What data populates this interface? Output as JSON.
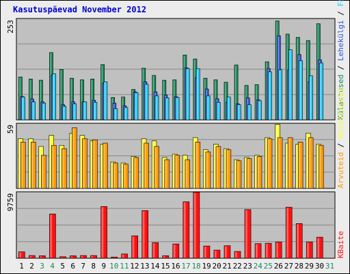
{
  "title": "Kasutuspäevad November 2012",
  "colors": {
    "visits": "#1a8a5a",
    "pages": "#3355dd",
    "hits": "#22ccff",
    "unique": "#ffff33",
    "files": "#ff9900",
    "bandwidth": "#ff1111",
    "weekday_label": "#000000",
    "weekend_label": "#1a8a5a"
  },
  "chart_data": [
    {
      "type": "bar",
      "panel": "top",
      "max_label": "253",
      "ymax": 253,
      "categories": [
        "1",
        "2",
        "3",
        "4",
        "5",
        "6",
        "7",
        "8",
        "9",
        "10",
        "11",
        "12",
        "13",
        "14",
        "15",
        "16",
        "17",
        "18",
        "19",
        "20",
        "21",
        "22",
        "23",
        "24",
        "25",
        "26",
        "27",
        "28",
        "29",
        "30",
        "31"
      ],
      "weekend_days": [
        "3",
        "4",
        "10",
        "11",
        "17",
        "18",
        "24",
        "25",
        "31"
      ],
      "legend_parts": [
        {
          "text": "Külastused",
          "color": "#1a8a5a"
        },
        {
          "text": " / ",
          "color": "#000000"
        },
        {
          "text": "Lehekülgi",
          "color": "#3355dd"
        },
        {
          "text": " / ",
          "color": "#000000"
        },
        {
          "text": "Faile",
          "color": "#22ccff"
        },
        {
          "text": " / ",
          "color": "#000000"
        },
        {
          "text": "Pöördumisi",
          "color": "#1a8a5a"
        }
      ],
      "series": [
        {
          "name": "Külastused",
          "key": "visits",
          "values": [
            107,
            102,
            99,
            168,
            126,
            104,
            100,
            102,
            138,
            56,
            57,
            76,
            129,
            111,
            99,
            100,
            162,
            152,
            104,
            100,
            94,
            137,
            86,
            88,
            145,
            247,
            214,
            206,
            198,
            240,
            0
          ]
        },
        {
          "name": "Lehekülgi",
          "key": "pages",
          "values": [
            58,
            52,
            45,
            112,
            38,
            45,
            45,
            49,
            92,
            42,
            35,
            70,
            95,
            70,
            62,
            58,
            130,
            105,
            77,
            53,
            44,
            40,
            55,
            50,
            128,
            210,
            125,
            163,
            95,
            150,
            0
          ]
        },
        {
          "name": "Faile",
          "key": "hits",
          "values": [
            57,
            45,
            42,
            115,
            34,
            40,
            45,
            44,
            95,
            28,
            31,
            68,
            89,
            60,
            55,
            56,
            128,
            128,
            60,
            44,
            57,
            38,
            38,
            48,
            120,
            125,
            175,
            148,
            110,
            142,
            0
          ]
        }
      ]
    },
    {
      "type": "bar",
      "panel": "middle",
      "max_label": "59",
      "ymax": 59,
      "categories": [
        "1",
        "2",
        "3",
        "4",
        "5",
        "6",
        "7",
        "8",
        "9",
        "10",
        "11",
        "12",
        "13",
        "14",
        "15",
        "16",
        "17",
        "18",
        "19",
        "20",
        "21",
        "22",
        "23",
        "24",
        "25",
        "26",
        "27",
        "28",
        "29",
        "30",
        "31"
      ],
      "legend_parts": [
        {
          "text": "Arvuteid",
          "color": "#ff9900"
        },
        {
          "text": " / ",
          "color": "#000000"
        },
        {
          "text": "Külastajaid",
          "color": "#ffff33"
        }
      ],
      "series": [
        {
          "name": "Arvuteid",
          "key": "unique",
          "values": [
            45,
            45,
            38,
            48,
            39,
            50,
            48,
            43,
            40,
            24,
            23,
            29,
            45,
            43,
            28,
            31,
            30,
            46,
            35,
            40,
            36,
            26,
            28,
            30,
            46,
            58,
            41,
            40,
            50,
            40,
            0
          ]
        },
        {
          "name": "Külastajaid",
          "key": "files",
          "values": [
            42,
            42,
            30,
            39,
            36,
            55,
            45,
            44,
            41,
            23,
            22,
            28,
            41,
            38,
            26,
            30,
            26,
            42,
            33,
            38,
            35,
            25,
            27,
            29,
            45,
            46,
            46,
            42,
            46,
            39,
            0
          ]
        }
      ]
    },
    {
      "type": "bar",
      "panel": "bottom",
      "max_label": "9759",
      "ymax": 9759,
      "categories": [
        "1",
        "2",
        "3",
        "4",
        "5",
        "6",
        "7",
        "8",
        "9",
        "10",
        "11",
        "12",
        "13",
        "14",
        "15",
        "16",
        "17",
        "18",
        "19",
        "20",
        "21",
        "22",
        "23",
        "24",
        "25",
        "26",
        "27",
        "28",
        "29",
        "30",
        "31"
      ],
      "legend_parts": [
        {
          "text": "KBaite",
          "color": "#ff1111"
        }
      ],
      "series": [
        {
          "name": "KBaite",
          "key": "bandwidth",
          "values": [
            950,
            400,
            370,
            6500,
            230,
            370,
            400,
            400,
            7600,
            180,
            630,
            3300,
            7000,
            2300,
            380,
            2100,
            8300,
            9700,
            1800,
            1200,
            1850,
            1000,
            7150,
            2150,
            2200,
            2400,
            7500,
            5100,
            2400,
            3100,
            0
          ]
        }
      ]
    }
  ]
}
